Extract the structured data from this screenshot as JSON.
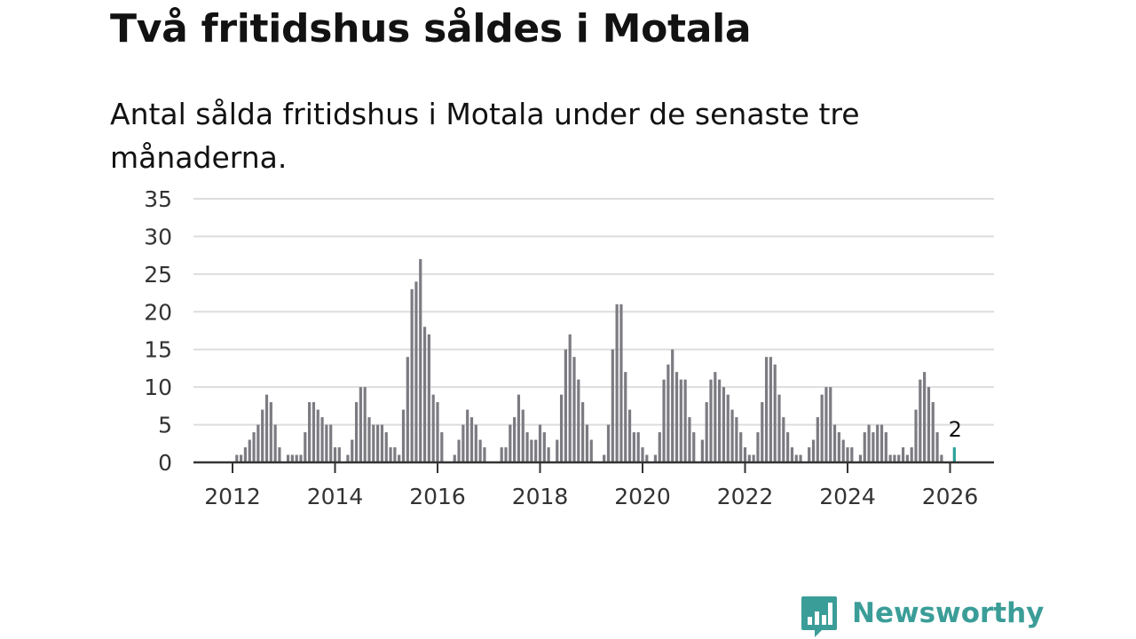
{
  "title": "Två fritidshus såldes i Motala",
  "subtitle": "Antal sålda fritidshus i Motala under de senaste tre månaderna.",
  "brand": {
    "name": "Newsworthy",
    "color": "#3b9d98",
    "icon": "bar-chart-speech-bubble-icon"
  },
  "colors": {
    "bars": "#7c7b82",
    "highlight": "#2aa19a",
    "grid": "#dddddd",
    "axis": "#333333"
  },
  "chart_data": {
    "type": "bar",
    "title": "Två fritidshus såldes i Motala",
    "subtitle": "Antal sålda fritidshus i Motala under de senaste tre månaderna.",
    "xlabel": "",
    "ylabel": "",
    "ylim": [
      0,
      35
    ],
    "yticks": [
      "0",
      "5",
      "10",
      "15",
      "20",
      "25",
      "30",
      "35"
    ],
    "xticks": [
      "2012",
      "2014",
      "2016",
      "2018",
      "2020",
      "2022",
      "2024",
      "2026"
    ],
    "x_start": "2012-01",
    "x_end": "2026-02",
    "grid": true,
    "legend": "none",
    "series": [
      {
        "values": [
          0,
          1,
          1,
          2,
          3,
          4,
          5,
          7,
          9,
          8,
          5,
          2,
          0,
          1,
          1,
          1,
          1,
          4,
          8,
          8,
          7,
          6,
          5,
          5,
          2,
          2,
          0,
          1,
          3,
          8,
          10,
          10,
          6,
          5,
          5,
          5,
          4,
          2,
          2,
          1,
          7,
          14,
          23,
          24,
          27,
          18,
          17,
          9,
          8,
          4,
          0,
          0,
          1,
          3,
          5,
          7,
          6,
          5,
          3,
          2,
          0,
          0,
          0,
          2,
          2,
          5,
          6,
          9,
          7,
          4,
          3,
          3,
          5,
          4,
          2,
          0,
          3,
          9,
          15,
          17,
          14,
          11,
          8,
          5,
          3,
          0,
          0,
          1,
          5,
          15,
          21,
          21,
          12,
          7,
          4,
          4,
          2,
          1,
          0,
          1,
          4,
          11,
          13,
          15,
          12,
          11,
          11,
          6,
          4,
          0,
          3,
          8,
          11,
          12,
          11,
          10,
          9,
          7,
          6,
          4,
          2,
          1,
          1,
          4,
          8,
          14,
          14,
          13,
          9,
          6,
          4,
          2,
          1,
          1,
          0,
          2,
          3,
          6,
          9,
          10,
          10,
          5,
          4,
          3,
          2,
          2,
          0,
          1,
          4,
          5,
          4,
          5,
          5,
          4,
          1,
          1,
          1,
          2,
          1,
          2,
          7,
          11,
          12,
          10,
          8,
          4,
          1,
          0,
          0,
          2
        ]
      }
    ],
    "highlight_last": true,
    "last_value_label": "2"
  }
}
